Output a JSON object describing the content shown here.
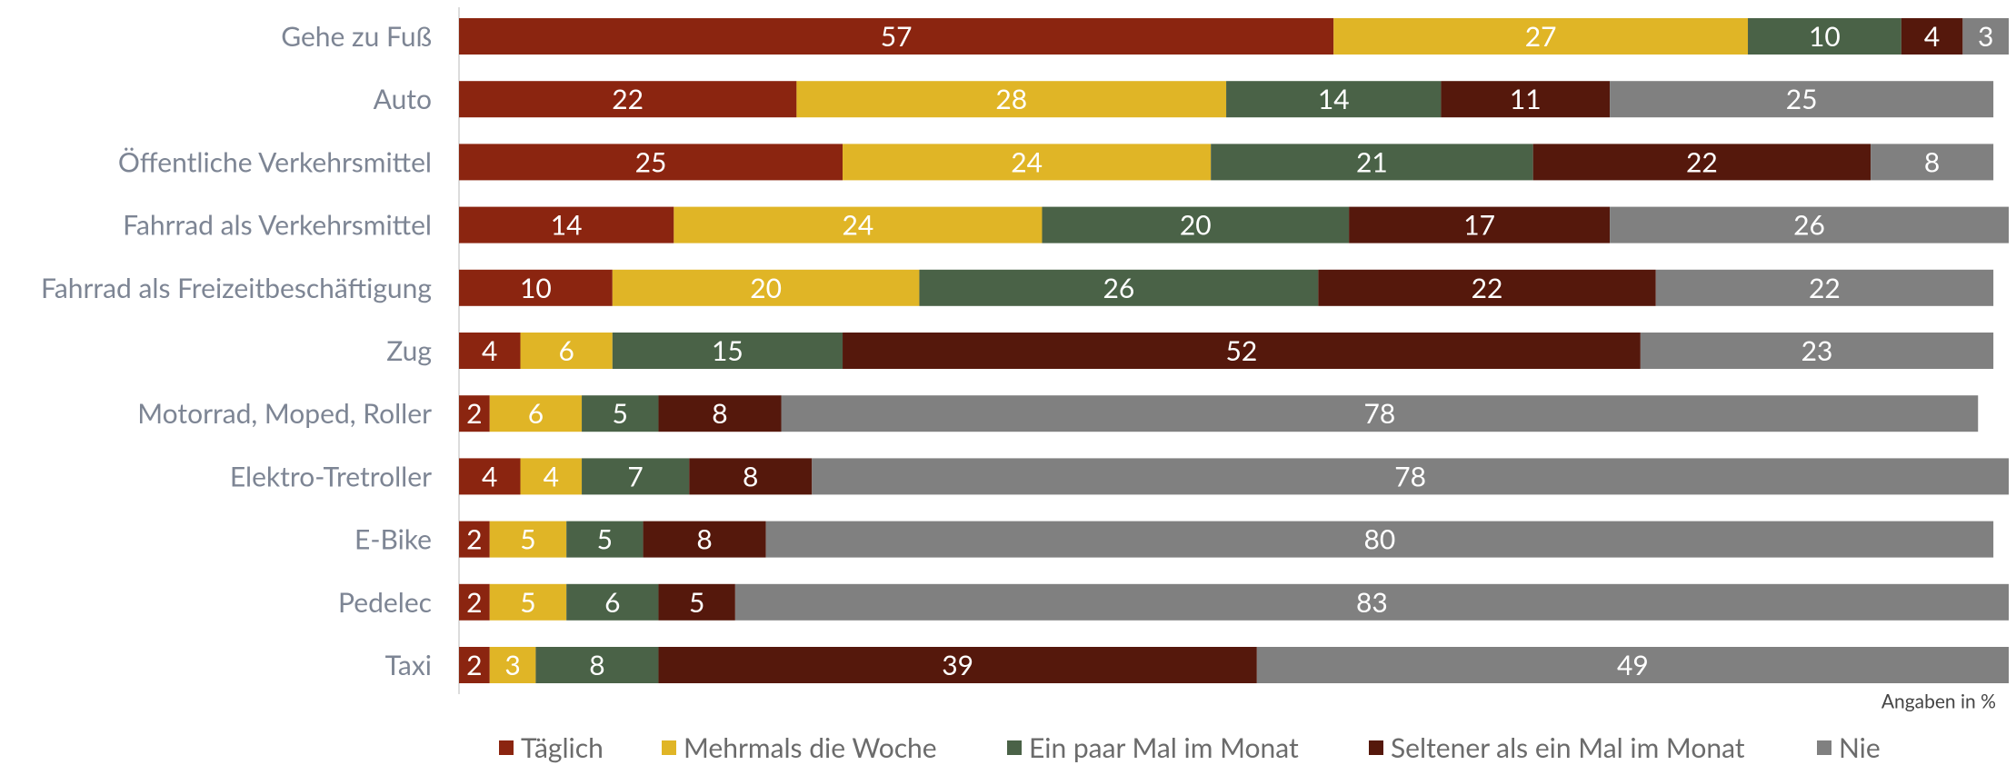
{
  "chart_data": {
    "type": "stacked-bar-horizontal",
    "note": "Angaben in %",
    "categories": [
      "Gehe zu Fuß",
      "Auto",
      "Öffentliche Verkehrsmittel",
      "Fahrrad als Verkehrsmittel",
      "Fahrrad als Freizeitbeschäftigung",
      "Zug",
      "Motorrad, Moped, Roller",
      "Elektro-Tretroller",
      "E-Bike",
      "Pedelec",
      "Taxi"
    ],
    "series": [
      {
        "name": "Täglich",
        "color": "#8b2510",
        "values": [
          57,
          22,
          25,
          14,
          10,
          4,
          2,
          4,
          2,
          2,
          2
        ]
      },
      {
        "name": "Mehrmals die Woche",
        "color": "#e0b526",
        "values": [
          27,
          28,
          24,
          24,
          20,
          6,
          6,
          4,
          5,
          5,
          3
        ]
      },
      {
        "name": "Ein paar Mal im Monat",
        "color": "#4a6247",
        "values": [
          10,
          14,
          21,
          20,
          26,
          15,
          5,
          7,
          5,
          6,
          8
        ]
      },
      {
        "name": "Seltener als ein Mal im Monat",
        "color": "#55180c",
        "values": [
          4,
          11,
          22,
          17,
          22,
          52,
          8,
          8,
          8,
          5,
          39
        ]
      },
      {
        "name": "Nie",
        "color": "#808080",
        "values": [
          3,
          25,
          8,
          26,
          22,
          23,
          78,
          78,
          80,
          83,
          49
        ]
      }
    ],
    "xlim": [
      0,
      101
    ],
    "legend": "bottom"
  }
}
